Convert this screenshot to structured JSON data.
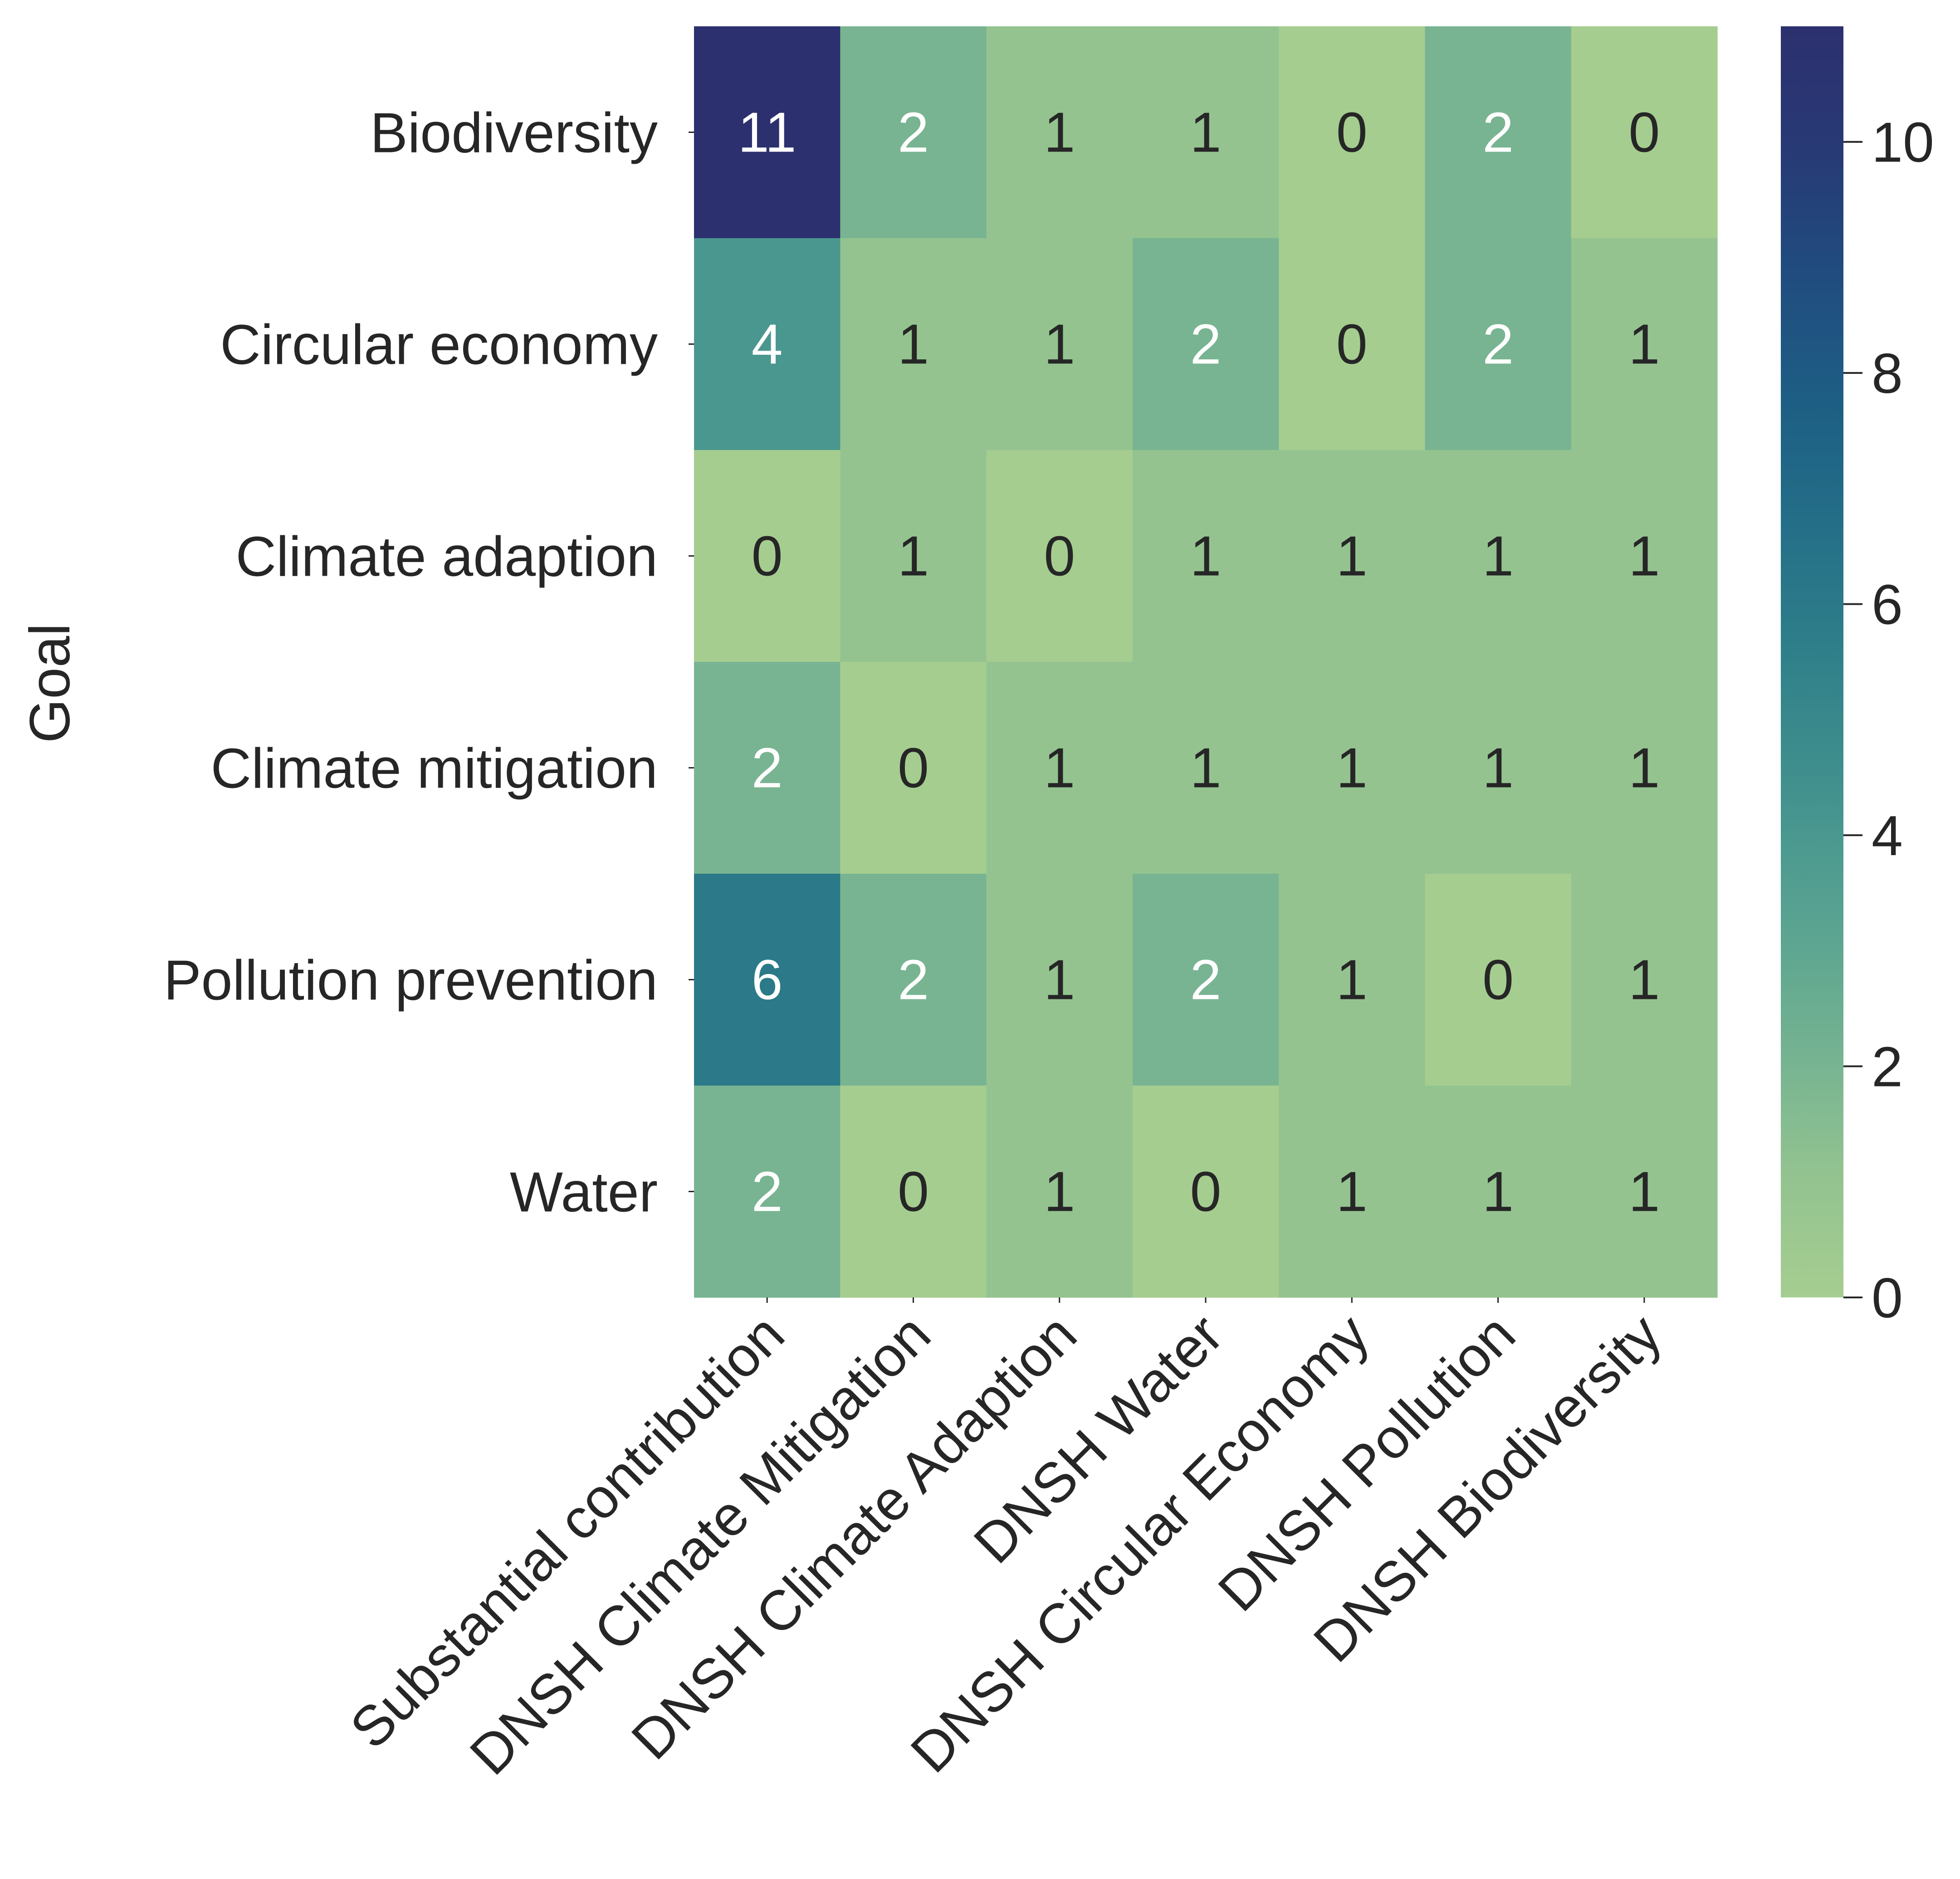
{
  "chart_data": {
    "type": "heatmap",
    "ylabel": "Goal",
    "xlabel": "",
    "rows": [
      "Biodiversity",
      "Circular economy",
      "Climate adaption",
      "Climate mitigation",
      "Pollution prevention",
      "Water"
    ],
    "columns": [
      "Substantial contribution",
      "DNSH Climate Mitigation",
      "DNSH Climate Adaption",
      "DNSH Water",
      "DNSH Circular Economy",
      "DNSH Pollution",
      "DNSH Biodiversity"
    ],
    "values": [
      [
        11,
        2,
        1,
        1,
        0,
        2,
        0
      ],
      [
        4,
        1,
        1,
        2,
        0,
        2,
        1
      ],
      [
        0,
        1,
        0,
        1,
        1,
        1,
        1
      ],
      [
        2,
        0,
        1,
        1,
        1,
        1,
        1
      ],
      [
        6,
        2,
        1,
        2,
        1,
        0,
        1
      ],
      [
        2,
        0,
        1,
        0,
        1,
        1,
        1
      ]
    ],
    "colorbar": {
      "range": [
        0,
        11
      ],
      "ticks": [
        "0",
        "2",
        "4",
        "6",
        "8",
        "10"
      ],
      "colormap": "crest"
    }
  }
}
